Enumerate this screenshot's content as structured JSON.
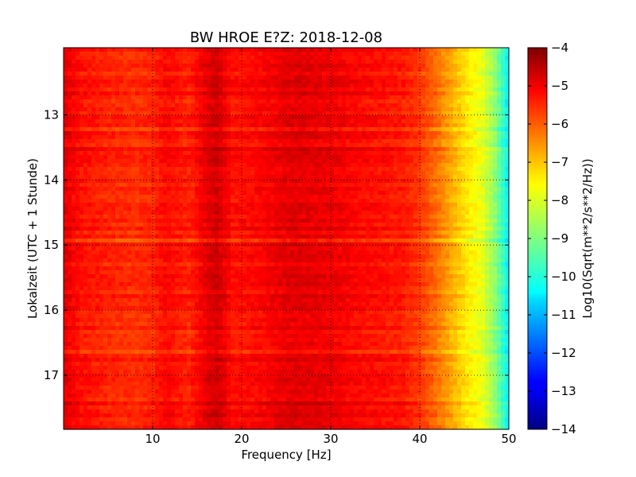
{
  "chart_data": {
    "type": "heatmap",
    "title": "BW HROE E?Z: 2018-12-08",
    "xlabel": "Frequency [Hz]",
    "ylabel": "Lokalzeit (UTC + 1 Stunde)",
    "xlim": [
      0,
      50
    ],
    "ylim": [
      11.97,
      17.83
    ],
    "y_inverted": true,
    "x_ticks": [
      10,
      20,
      30,
      40,
      50
    ],
    "y_ticks": [
      13,
      14,
      15,
      16,
      17
    ],
    "grid": true,
    "colormap": "jet",
    "colorbar": {
      "label": "Log10(Sqrt(m**2/s**2/Hz))",
      "range": [
        -14,
        -4
      ],
      "ticks": [
        -4,
        -5,
        -6,
        -7,
        -8,
        -9,
        -10,
        -11,
        -12,
        -13,
        -14
      ]
    },
    "frequency_profile_hz": [
      0,
      2,
      5,
      8,
      10,
      11.5,
      14,
      16.5,
      17.3,
      19,
      22,
      25,
      27,
      30,
      33,
      36,
      38,
      40,
      42,
      44,
      45.5,
      47,
      48.5,
      50
    ],
    "frequency_profile_log10": [
      -5.0,
      -5.4,
      -5.6,
      -5.7,
      -5.6,
      -5.3,
      -5.6,
      -4.9,
      -4.8,
      -5.4,
      -5.3,
      -5.0,
      -5.0,
      -5.1,
      -5.3,
      -5.4,
      -5.5,
      -5.8,
      -6.4,
      -7.1,
      -7.6,
      -8.0,
      -8.9,
      -10.4
    ]
  }
}
